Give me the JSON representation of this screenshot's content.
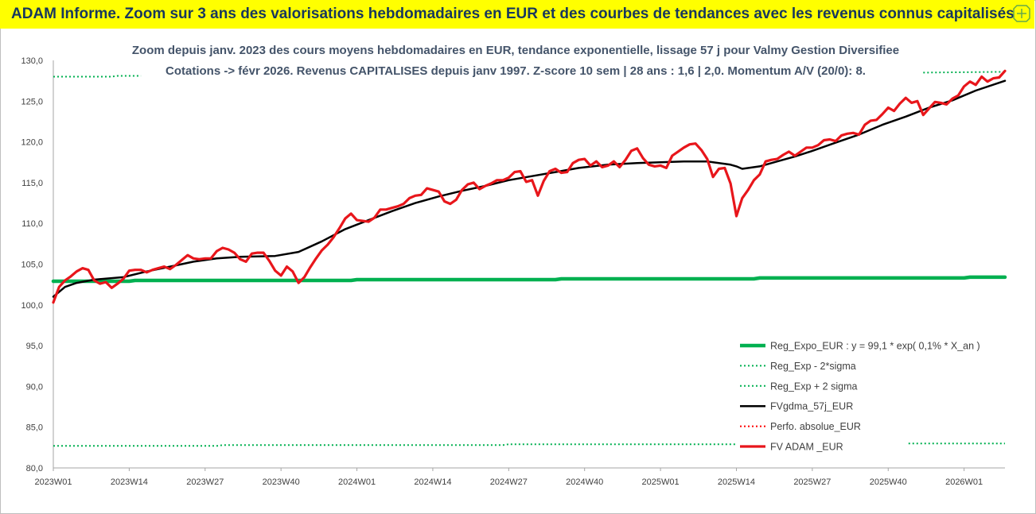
{
  "header": {
    "title": "ADAM Informe. Zoom sur 3 ans des valorisations hebdomadaires en EUR et des courbes de tendances avec les revenus connus capitalisés"
  },
  "chart_data": {
    "type": "line",
    "title": "Zoom depuis janv. 2023 des cours moyens hebdomadaires en EUR, tendance exponentielle, lissage 57 j pour Valmy Gestion Diversifiee",
    "subtitle": "Cotations -> févr 2026. Revenus CAPITALISES depuis janv 1997. Z-score 10 sem | 28 ans : 1,6 | 2,0. Momentum A/V (20/0): 8.",
    "ylim": [
      80,
      130
    ],
    "yticks": [
      "80,0",
      "85,0",
      "90,0",
      "95,0",
      "100,0",
      "105,0",
      "110,0",
      "115,0",
      "120,0",
      "125,0",
      "130,0"
    ],
    "xlim": [
      0,
      163
    ],
    "xticks": [
      {
        "x": 0,
        "label": "2023W01"
      },
      {
        "x": 13,
        "label": "2023W14"
      },
      {
        "x": 26,
        "label": "2023W27"
      },
      {
        "x": 39,
        "label": "2023W40"
      },
      {
        "x": 52,
        "label": "2024W01"
      },
      {
        "x": 65,
        "label": "2024W14"
      },
      {
        "x": 78,
        "label": "2024W27"
      },
      {
        "x": 91,
        "label": "2024W40"
      },
      {
        "x": 104,
        "label": "2025W01"
      },
      {
        "x": 117,
        "label": "2025W14"
      },
      {
        "x": 130,
        "label": "2025W27"
      },
      {
        "x": 143,
        "label": "2025W40"
      },
      {
        "x": 156,
        "label": "2026W01"
      }
    ],
    "legend_position": "bottom-right",
    "grid": false,
    "series": [
      {
        "name": "Reg_Expo_EUR : y = 99,1 * exp( 0,1% *  X_an )",
        "color": "#00b050",
        "style": "solid-thick",
        "points": [
          [
            0,
            102.9
          ],
          [
            13,
            102.9
          ],
          [
            14,
            103.0
          ],
          [
            51,
            103.0
          ],
          [
            52,
            103.1
          ],
          [
            86,
            103.1
          ],
          [
            87,
            103.2
          ],
          [
            120,
            103.2
          ],
          [
            121,
            103.3
          ],
          [
            156,
            103.3
          ],
          [
            157,
            103.4
          ],
          [
            163,
            103.4
          ]
        ]
      },
      {
        "name": "Reg_Exp - 2*sigma",
        "color": "#00b050",
        "style": "dotted",
        "points": [
          [
            0,
            82.7
          ],
          [
            28,
            82.7
          ],
          [
            29,
            82.8
          ],
          [
            77,
            82.8
          ],
          [
            78,
            82.9
          ],
          [
            122,
            82.9
          ],
          [
            123,
            83.0
          ],
          [
            163,
            83.0
          ]
        ]
      },
      {
        "name": "Reg_Exp + 2 sigma",
        "color": "#00b050",
        "style": "dotted",
        "points": [
          [
            0,
            128.0
          ],
          [
            10,
            128.0
          ],
          [
            11,
            128.1
          ],
          [
            15,
            128.1
          ],
          [
            15,
            null
          ],
          [
            149,
            128.5
          ],
          [
            163,
            128.6
          ]
        ]
      },
      {
        "name": "FVgdma_57j_EUR",
        "color": "#000000",
        "style": "solid",
        "points": [
          [
            0,
            101.0
          ],
          [
            2,
            102.2
          ],
          [
            4,
            102.7
          ],
          [
            7,
            103.1
          ],
          [
            12,
            103.4
          ],
          [
            16,
            104.1
          ],
          [
            20,
            104.7
          ],
          [
            24,
            105.3
          ],
          [
            28,
            105.7
          ],
          [
            32,
            105.9
          ],
          [
            38,
            106.0
          ],
          [
            42,
            106.5
          ],
          [
            46,
            107.8
          ],
          [
            50,
            109.3
          ],
          [
            54,
            110.4
          ],
          [
            58,
            111.5
          ],
          [
            62,
            112.5
          ],
          [
            66,
            113.3
          ],
          [
            70,
            114.0
          ],
          [
            74,
            114.6
          ],
          [
            78,
            115.3
          ],
          [
            82,
            115.8
          ],
          [
            86,
            116.3
          ],
          [
            90,
            116.8
          ],
          [
            95,
            117.2
          ],
          [
            100,
            117.4
          ],
          [
            104,
            117.5
          ],
          [
            108,
            117.6
          ],
          [
            112,
            117.6
          ],
          [
            116,
            117.2
          ],
          [
            117,
            117.0
          ],
          [
            118,
            116.7
          ],
          [
            121,
            117.0
          ],
          [
            124,
            117.6
          ],
          [
            127,
            118.2
          ],
          [
            130,
            118.9
          ],
          [
            134,
            119.9
          ],
          [
            138,
            120.9
          ],
          [
            142,
            122.1
          ],
          [
            146,
            123.1
          ],
          [
            150,
            124.2
          ],
          [
            154,
            125.1
          ],
          [
            158,
            126.3
          ],
          [
            163,
            127.5
          ]
        ]
      },
      {
        "name": "Perfo. absolue_EUR",
        "color": "#ff0000",
        "style": "dotted",
        "points": []
      },
      {
        "name": "FV ADAM _EUR",
        "color": "#e8161b",
        "style": "solid-thick",
        "points": [
          [
            0,
            100.3
          ],
          [
            1,
            102.2
          ],
          [
            2,
            103.0
          ],
          [
            3,
            103.5
          ],
          [
            4,
            104.1
          ],
          [
            5,
            104.5
          ],
          [
            6,
            104.3
          ],
          [
            7,
            103.0
          ],
          [
            8,
            102.6
          ],
          [
            9,
            102.8
          ],
          [
            10,
            102.1
          ],
          [
            11,
            102.6
          ],
          [
            12,
            103.2
          ],
          [
            13,
            104.2
          ],
          [
            14,
            104.3
          ],
          [
            15,
            104.3
          ],
          [
            16,
            104.0
          ],
          [
            17,
            104.3
          ],
          [
            18,
            104.5
          ],
          [
            19,
            104.7
          ],
          [
            20,
            104.4
          ],
          [
            21,
            104.9
          ],
          [
            22,
            105.5
          ],
          [
            23,
            106.1
          ],
          [
            24,
            105.7
          ],
          [
            25,
            105.6
          ],
          [
            26,
            105.7
          ],
          [
            27,
            105.7
          ],
          [
            28,
            106.6
          ],
          [
            29,
            107.0
          ],
          [
            30,
            106.8
          ],
          [
            31,
            106.4
          ],
          [
            32,
            105.6
          ],
          [
            33,
            105.3
          ],
          [
            34,
            106.3
          ],
          [
            35,
            106.4
          ],
          [
            36,
            106.4
          ],
          [
            37,
            105.4
          ],
          [
            38,
            104.2
          ],
          [
            39,
            103.6
          ],
          [
            40,
            104.7
          ],
          [
            41,
            104.1
          ],
          [
            42,
            102.7
          ],
          [
            43,
            103.4
          ],
          [
            44,
            104.6
          ],
          [
            45,
            105.7
          ],
          [
            46,
            106.7
          ],
          [
            47,
            107.4
          ],
          [
            48,
            108.3
          ],
          [
            49,
            109.4
          ],
          [
            50,
            110.6
          ],
          [
            51,
            111.2
          ],
          [
            52,
            110.4
          ],
          [
            53,
            110.3
          ],
          [
            54,
            110.2
          ],
          [
            55,
            110.7
          ],
          [
            56,
            111.7
          ],
          [
            57,
            111.7
          ],
          [
            58,
            111.9
          ],
          [
            59,
            112.1
          ],
          [
            60,
            112.4
          ],
          [
            61,
            113.1
          ],
          [
            62,
            113.4
          ],
          [
            63,
            113.5
          ],
          [
            64,
            114.3
          ],
          [
            65,
            114.1
          ],
          [
            66,
            113.9
          ],
          [
            67,
            112.7
          ],
          [
            68,
            112.4
          ],
          [
            69,
            112.9
          ],
          [
            70,
            114.1
          ],
          [
            71,
            114.8
          ],
          [
            72,
            115.0
          ],
          [
            73,
            114.2
          ],
          [
            74,
            114.6
          ],
          [
            75,
            114.9
          ],
          [
            76,
            115.3
          ],
          [
            77,
            115.3
          ],
          [
            78,
            115.6
          ],
          [
            79,
            116.3
          ],
          [
            80,
            116.4
          ],
          [
            81,
            115.1
          ],
          [
            82,
            115.3
          ],
          [
            83,
            113.4
          ],
          [
            84,
            115.2
          ],
          [
            85,
            116.4
          ],
          [
            86,
            116.7
          ],
          [
            87,
            116.2
          ],
          [
            88,
            116.3
          ],
          [
            89,
            117.4
          ],
          [
            90,
            117.8
          ],
          [
            91,
            117.9
          ],
          [
            92,
            117.1
          ],
          [
            93,
            117.6
          ],
          [
            94,
            116.9
          ],
          [
            95,
            117.1
          ],
          [
            96,
            117.6
          ],
          [
            97,
            116.9
          ],
          [
            98,
            117.8
          ],
          [
            99,
            118.9
          ],
          [
            100,
            119.2
          ],
          [
            101,
            118.0
          ],
          [
            102,
            117.2
          ],
          [
            103,
            117.0
          ],
          [
            104,
            117.1
          ],
          [
            105,
            116.8
          ],
          [
            106,
            118.3
          ],
          [
            107,
            118.8
          ],
          [
            108,
            119.3
          ],
          [
            109,
            119.7
          ],
          [
            110,
            119.8
          ],
          [
            111,
            119.0
          ],
          [
            112,
            117.9
          ],
          [
            113,
            115.7
          ],
          [
            114,
            116.7
          ],
          [
            115,
            116.8
          ],
          [
            116,
            114.9
          ],
          [
            117,
            110.9
          ],
          [
            118,
            113.1
          ],
          [
            119,
            114.1
          ],
          [
            120,
            115.3
          ],
          [
            121,
            116.0
          ],
          [
            122,
            117.6
          ],
          [
            123,
            117.8
          ],
          [
            124,
            117.9
          ],
          [
            125,
            118.4
          ],
          [
            126,
            118.8
          ],
          [
            127,
            118.3
          ],
          [
            128,
            118.8
          ],
          [
            129,
            119.3
          ],
          [
            130,
            119.3
          ],
          [
            131,
            119.6
          ],
          [
            132,
            120.2
          ],
          [
            133,
            120.3
          ],
          [
            134,
            120.1
          ],
          [
            135,
            120.8
          ],
          [
            136,
            121.0
          ],
          [
            137,
            121.1
          ],
          [
            138,
            120.9
          ],
          [
            139,
            122.1
          ],
          [
            140,
            122.6
          ],
          [
            141,
            122.7
          ],
          [
            142,
            123.4
          ],
          [
            143,
            124.2
          ],
          [
            144,
            123.8
          ],
          [
            145,
            124.7
          ],
          [
            146,
            125.4
          ],
          [
            147,
            124.8
          ],
          [
            148,
            125.0
          ],
          [
            149,
            123.3
          ],
          [
            150,
            124.1
          ],
          [
            151,
            124.9
          ],
          [
            152,
            124.8
          ],
          [
            153,
            124.6
          ],
          [
            154,
            125.3
          ],
          [
            155,
            125.7
          ],
          [
            156,
            126.8
          ],
          [
            157,
            127.4
          ],
          [
            158,
            127.0
          ],
          [
            159,
            128.0
          ],
          [
            160,
            127.4
          ],
          [
            161,
            127.8
          ],
          [
            162,
            127.9
          ],
          [
            163,
            128.7
          ]
        ]
      }
    ]
  }
}
